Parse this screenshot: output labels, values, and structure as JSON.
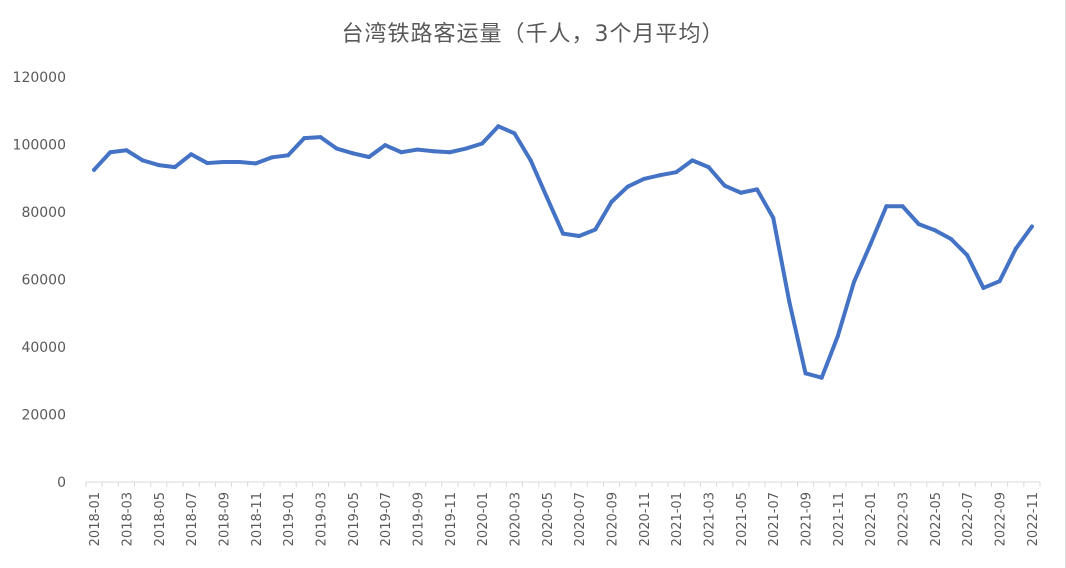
{
  "chart_data": {
    "type": "line",
    "title": "台湾铁路客运量（千人，3个月平均）",
    "xlabel": "",
    "ylabel": "",
    "ylim": [
      0,
      120000
    ],
    "yticks": [
      0,
      20000,
      40000,
      60000,
      80000,
      100000,
      120000
    ],
    "grid": false,
    "legend": "none",
    "colors": {
      "line": "#4472c4",
      "axis": "#d9d9d9",
      "text": "#595959"
    },
    "x": [
      "2018-01",
      "2018-02",
      "2018-03",
      "2018-04",
      "2018-05",
      "2018-06",
      "2018-07",
      "2018-08",
      "2018-09",
      "2018-10",
      "2018-11",
      "2018-12",
      "2019-01",
      "2019-02",
      "2019-03",
      "2019-04",
      "2019-05",
      "2019-06",
      "2019-07",
      "2019-08",
      "2019-09",
      "2019-10",
      "2019-11",
      "2019-12",
      "2020-01",
      "2020-02",
      "2020-03",
      "2020-04",
      "2020-05",
      "2020-06",
      "2020-07",
      "2020-08",
      "2020-09",
      "2020-10",
      "2020-11",
      "2020-12",
      "2021-01",
      "2021-02",
      "2021-03",
      "2021-04",
      "2021-05",
      "2021-06",
      "2021-07",
      "2021-08",
      "2021-09",
      "2021-10",
      "2021-11",
      "2021-12",
      "2022-01",
      "2022-02",
      "2022-03",
      "2022-04",
      "2022-05",
      "2022-06",
      "2022-07",
      "2022-08",
      "2022-09",
      "2022-10",
      "2022-11"
    ],
    "x_tick_labels": [
      "2018-01",
      "2018-03",
      "2018-05",
      "2018-07",
      "2018-09",
      "2018-11",
      "2019-01",
      "2019-03",
      "2019-05",
      "2019-07",
      "2019-09",
      "2019-11",
      "2020-01",
      "2020-03",
      "2020-05",
      "2020-07",
      "2020-09",
      "2020-11",
      "2021-01",
      "2021-03",
      "2021-05",
      "2021-07",
      "2021-09",
      "2021-11",
      "2022-01",
      "2022-03",
      "2022-05",
      "2022-07",
      "2022-09",
      "2022-11"
    ],
    "series": [
      {
        "name": "",
        "values": [
          92500,
          97700,
          98300,
          95300,
          93900,
          93300,
          97100,
          94500,
          94800,
          94800,
          94400,
          96200,
          96800,
          101900,
          102200,
          98800,
          97400,
          96300,
          99800,
          97700,
          98500,
          98000,
          97700,
          98800,
          100300,
          105400,
          103300,
          95300,
          84400,
          73600,
          72900,
          74800,
          83000,
          87500,
          89800,
          90900,
          91800,
          95300,
          93300,
          87800,
          85700,
          86700,
          78300,
          53300,
          32200,
          30900,
          43300,
          59300,
          70300,
          81700,
          81700,
          76400,
          74600,
          72000,
          67200,
          57500,
          59500,
          69100,
          75700
        ]
      }
    ]
  }
}
